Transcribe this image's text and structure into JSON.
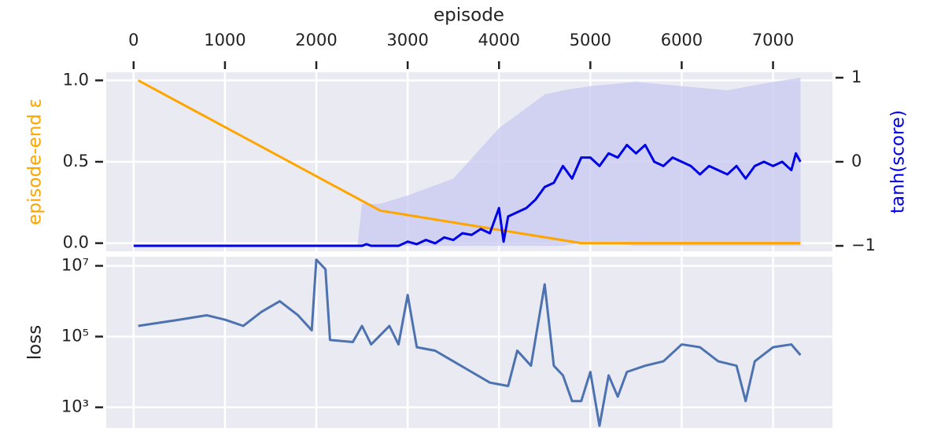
{
  "chart_data": [
    {
      "type": "line",
      "xlabel": "episode",
      "xlim": [
        -300,
        7650
      ],
      "xticks": [
        0,
        1000,
        2000,
        3000,
        4000,
        5000,
        6000,
        7000
      ],
      "ylabel": "episode-end ε",
      "ylim": [
        -0.05,
        1.05
      ],
      "yticks": [
        {
          "value": 0,
          "label": "0.0"
        },
        {
          "value": 0.5,
          "label": "0.5"
        },
        {
          "value": 1,
          "label": "1.0"
        }
      ],
      "y2label": "tanh(score)",
      "y2lim": [
        -1.065,
        1.065
      ],
      "y2ticks": [
        {
          "value": -1,
          "label": "−1"
        },
        0,
        1
      ],
      "grid": true,
      "series": [
        {
          "color": "#ffa500",
          "x": [
            50,
            2700,
            4900,
            7300
          ],
          "values": [
            1.0,
            0.2,
            0.0,
            0.0
          ]
        },
        {
          "color": "#0000e6",
          "axis": "y2",
          "x": [
            0,
            2500,
            2550,
            2600,
            2900,
            3000,
            3100,
            3200,
            3300,
            3400,
            3500,
            3600,
            3700,
            3800,
            3900,
            4000,
            4050,
            4100,
            4200,
            4300,
            4400,
            4500,
            4600,
            4700,
            4800,
            4900,
            5000,
            5100,
            5200,
            5300,
            5400,
            5500,
            5600,
            5700,
            5800,
            5900,
            6000,
            6100,
            6200,
            6300,
            6400,
            6500,
            6600,
            6700,
            6800,
            6900,
            7000,
            7100,
            7200,
            7250,
            7300
          ],
          "values": [
            -1,
            -1,
            -0.98,
            -1,
            -1,
            -0.95,
            -0.98,
            -0.93,
            -0.97,
            -0.9,
            -0.93,
            -0.85,
            -0.87,
            -0.8,
            -0.85,
            -0.55,
            -0.95,
            -0.65,
            -0.6,
            -0.55,
            -0.45,
            -0.3,
            -0.25,
            -0.05,
            -0.2,
            0.05,
            0.05,
            -0.05,
            0.1,
            0.05,
            0.2,
            0.1,
            0.2,
            0.0,
            -0.05,
            0.05,
            0.0,
            -0.05,
            -0.15,
            -0.05,
            -0.1,
            -0.15,
            -0.05,
            -0.2,
            -0.05,
            0.0,
            -0.05,
            0.0,
            -0.1,
            0.1,
            0.0
          ]
        }
      ],
      "band": {
        "color": "#c8c8f0",
        "axis": "y2",
        "x": [
          2450,
          2500,
          2700,
          3000,
          3500,
          4000,
          4500,
          4700,
          5000,
          5500,
          6000,
          6500,
          7000,
          7300
        ],
        "upper": [
          -1,
          -0.5,
          -0.5,
          -0.4,
          -0.2,
          0.4,
          0.8,
          0.85,
          0.9,
          0.95,
          0.9,
          0.85,
          0.95,
          1.0
        ],
        "lower": [
          -1,
          -1,
          -1,
          -1,
          -1,
          -1,
          -1,
          -1,
          -0.95,
          -1,
          -1,
          -1,
          -1,
          -1
        ]
      }
    },
    {
      "type": "line",
      "ylabel": "loss",
      "log": true,
      "xlim": [
        -300,
        7650
      ],
      "xticks": [
        0,
        1000,
        2000,
        3000,
        4000,
        5000,
        6000,
        7000
      ],
      "ylim": [
        260,
        18000000
      ],
      "yticks": [
        {
          "value": 1000,
          "label": "10³"
        },
        {
          "value": 100000,
          "label": "10⁵"
        },
        {
          "value": 10000000,
          "label": "10⁷"
        }
      ],
      "grid": true,
      "series": [
        {
          "color": "#4c72b0",
          "x": [
            50,
            300,
            500,
            800,
            1000,
            1200,
            1400,
            1600,
            1800,
            1950,
            2000,
            2100,
            2150,
            2400,
            2500,
            2600,
            2800,
            2900,
            3000,
            3100,
            3300,
            3500,
            3700,
            3900,
            4100,
            4200,
            4350,
            4500,
            4600,
            4700,
            4800,
            4900,
            5000,
            5100,
            5200,
            5300,
            5400,
            5600,
            5800,
            6000,
            6200,
            6400,
            6600,
            6700,
            6800,
            7000,
            7200,
            7300
          ],
          "values": [
            200000,
            250000,
            300000,
            400000,
            300000,
            200000,
            500000,
            1000000,
            400000,
            150000,
            15000000,
            8000000,
            80000,
            70000,
            200000,
            60000,
            200000,
            60000,
            1500000,
            50000,
            40000,
            20000,
            10000,
            5000,
            4000,
            40000,
            15000,
            3000000,
            15000,
            8000,
            1500,
            1500,
            10000,
            300,
            8000,
            2000,
            10000,
            15000,
            20000,
            60000,
            50000,
            20000,
            15000,
            1500,
            20000,
            50000,
            60000,
            30000
          ]
        }
      ]
    }
  ]
}
